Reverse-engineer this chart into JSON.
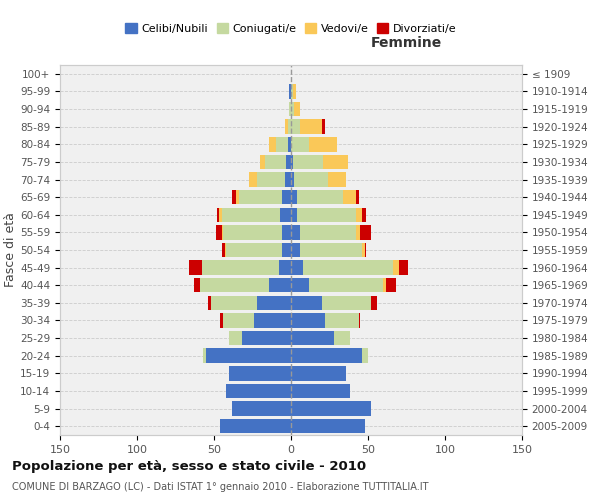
{
  "age_groups": [
    "0-4",
    "5-9",
    "10-14",
    "15-19",
    "20-24",
    "25-29",
    "30-34",
    "35-39",
    "40-44",
    "45-49",
    "50-54",
    "55-59",
    "60-64",
    "65-69",
    "70-74",
    "75-79",
    "80-84",
    "85-89",
    "90-94",
    "95-99",
    "100+"
  ],
  "birth_years": [
    "2005-2009",
    "2000-2004",
    "1995-1999",
    "1990-1994",
    "1985-1989",
    "1980-1984",
    "1975-1979",
    "1970-1974",
    "1965-1969",
    "1960-1964",
    "1955-1959",
    "1950-1954",
    "1945-1949",
    "1940-1944",
    "1935-1939",
    "1930-1934",
    "1925-1929",
    "1920-1924",
    "1915-1919",
    "1910-1914",
    "≤ 1909"
  ],
  "males": {
    "celibe": [
      46,
      38,
      42,
      40,
      55,
      32,
      24,
      22,
      14,
      8,
      6,
      6,
      7,
      6,
      4,
      3,
      2,
      0,
      0,
      1,
      0
    ],
    "coniugato": [
      0,
      0,
      0,
      0,
      2,
      8,
      20,
      30,
      45,
      50,
      36,
      38,
      38,
      28,
      18,
      14,
      8,
      2,
      1,
      0,
      0
    ],
    "vedovo": [
      0,
      0,
      0,
      0,
      0,
      0,
      0,
      0,
      0,
      0,
      1,
      1,
      2,
      2,
      5,
      3,
      4,
      2,
      0,
      0,
      0
    ],
    "divorziato": [
      0,
      0,
      0,
      0,
      0,
      0,
      2,
      2,
      4,
      8,
      2,
      4,
      1,
      2,
      0,
      0,
      0,
      0,
      0,
      0,
      0
    ]
  },
  "females": {
    "celibe": [
      48,
      52,
      38,
      36,
      46,
      28,
      22,
      20,
      12,
      8,
      6,
      6,
      4,
      4,
      2,
      1,
      0,
      0,
      0,
      0,
      0
    ],
    "coniugato": [
      0,
      0,
      0,
      0,
      4,
      10,
      22,
      32,
      48,
      58,
      40,
      36,
      38,
      30,
      22,
      20,
      12,
      6,
      2,
      1,
      0
    ],
    "vedovo": [
      0,
      0,
      0,
      0,
      0,
      0,
      0,
      0,
      2,
      4,
      2,
      3,
      4,
      8,
      12,
      16,
      18,
      14,
      4,
      2,
      0
    ],
    "divorziato": [
      0,
      0,
      0,
      0,
      0,
      0,
      1,
      4,
      6,
      6,
      1,
      7,
      3,
      2,
      0,
      0,
      0,
      2,
      0,
      0,
      0
    ]
  },
  "colors": {
    "celibe": "#4472c4",
    "coniugato": "#c5d9a0",
    "vedovo": "#fac858",
    "divorziato": "#cc0000"
  },
  "xlim": 150,
  "title": "Popolazione per età, sesso e stato civile - 2010",
  "subtitle": "COMUNE DI BARZAGO (LC) - Dati ISTAT 1° gennaio 2010 - Elaborazione TUTTITALIA.IT",
  "ylabel_left": "Fasce di età",
  "xlabel_femmine": "Femmine",
  "legend_labels": [
    "Celibi/Nubili",
    "Coniugati/e",
    "Vedovi/e",
    "Divorziati/e"
  ],
  "bg_color": "#f0f0f0"
}
